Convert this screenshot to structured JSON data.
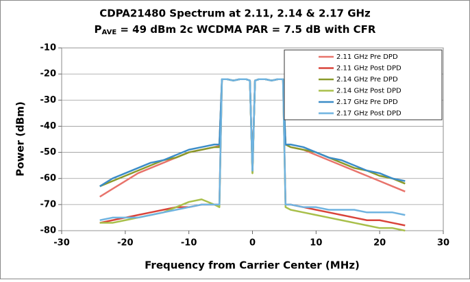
{
  "chart_data": {
    "type": "line",
    "title": "CDPA21480 Spectrum at 2.11, 2.14 & 2.17 GHz",
    "subtitle_parts": [
      "P",
      "AVE",
      " = 49 dBm 2c WCDMA PAR = 7.5 dB with CFR"
    ],
    "xlabel": "Frequency from Carrier Center (MHz)",
    "ylabel": "Power (dBm)",
    "xlim": [
      -30,
      30
    ],
    "xticks": [
      -30,
      -20,
      -10,
      0,
      10,
      20,
      30
    ],
    "ylim": [
      -80,
      -10
    ],
    "yticks": [
      -10,
      -20,
      -30,
      -40,
      -50,
      -60,
      -70,
      -80
    ],
    "grid": true,
    "legend": "upper right",
    "x": [
      -24,
      -22,
      -20,
      -18,
      -16,
      -14,
      -12,
      -10,
      -8,
      -6,
      -5.2,
      -4.8,
      -4,
      -3,
      -2,
      -1,
      -0.4,
      0,
      0.4,
      1,
      2,
      3,
      4,
      4.8,
      5.2,
      6,
      8,
      10,
      12,
      14,
      16,
      18,
      20,
      22,
      24
    ],
    "series": [
      {
        "name": "2.11 GHz Pre DPD",
        "color": "#e8736b",
        "values": [
          -67,
          -64,
          -61,
          -58,
          -56,
          -54,
          -52,
          -50,
          -49,
          -48,
          -47.5,
          -22,
          -22,
          -22.5,
          -22,
          -22,
          -22.5,
          -57,
          -22.5,
          -22,
          -22,
          -22.5,
          -22,
          -22,
          -47,
          -48,
          -49,
          -51,
          -53,
          -55,
          -57,
          -59,
          -61,
          -63,
          -65
        ]
      },
      {
        "name": "2.11 GHz Post DPD",
        "color": "#d9433a",
        "values": [
          -77,
          -76,
          -75,
          -74,
          -73,
          -72,
          -71,
          -71,
          -70,
          -70,
          -70,
          -22,
          -22,
          -22.5,
          -22,
          -22,
          -22.5,
          -57,
          -22.5,
          -22,
          -22,
          -22.5,
          -22,
          -22,
          -70,
          -70,
          -71,
          -72,
          -73,
          -74,
          -75,
          -76,
          -76,
          -77,
          -78
        ]
      },
      {
        "name": "2.14 GHz Pre DPD",
        "color": "#8a9a2a",
        "values": [
          -63,
          -61,
          -59,
          -57,
          -55,
          -53,
          -52,
          -50,
          -49,
          -48,
          -48,
          -22,
          -22,
          -22.5,
          -22,
          -22,
          -22.5,
          -58,
          -22.5,
          -22,
          -22,
          -22.5,
          -22,
          -22,
          -47,
          -48,
          -49,
          -50,
          -52,
          -54,
          -56,
          -57,
          -59,
          -60,
          -62
        ]
      },
      {
        "name": "2.14 GHz Post DPD",
        "color": "#a8bf4a",
        "values": [
          -77,
          -77,
          -76,
          -75,
          -74,
          -73,
          -71,
          -69,
          -68,
          -70,
          -71,
          -22,
          -22,
          -22.5,
          -22,
          -22,
          -22.5,
          -58,
          -22.5,
          -22,
          -22,
          -22.5,
          -22,
          -22,
          -71,
          -72,
          -73,
          -74,
          -75,
          -76,
          -77,
          -78,
          -79,
          -79,
          -80
        ]
      },
      {
        "name": "2.17 GHz Pre DPD",
        "color": "#3b8cc7",
        "values": [
          -63,
          -60,
          -58,
          -56,
          -54,
          -53,
          -51,
          -49,
          -48,
          -47,
          -47,
          -22,
          -22,
          -22.5,
          -22,
          -22,
          -22.5,
          -57,
          -22.5,
          -22,
          -22,
          -22.5,
          -22,
          -22,
          -47,
          -47,
          -48,
          -50,
          -52,
          -53,
          -55,
          -57,
          -58,
          -60,
          -61
        ]
      },
      {
        "name": "2.17 GHz Post DPD",
        "color": "#6fb3e0",
        "values": [
          -76,
          -75,
          -75,
          -75,
          -74,
          -73,
          -72,
          -71,
          -70,
          -70,
          -70,
          -22,
          -22,
          -22.5,
          -22,
          -22,
          -22.5,
          -57,
          -22.5,
          -22,
          -22,
          -22.5,
          -22,
          -22,
          -70,
          -70,
          -71,
          -71,
          -72,
          -72,
          -72,
          -73,
          -73,
          -73,
          -74
        ]
      }
    ]
  }
}
